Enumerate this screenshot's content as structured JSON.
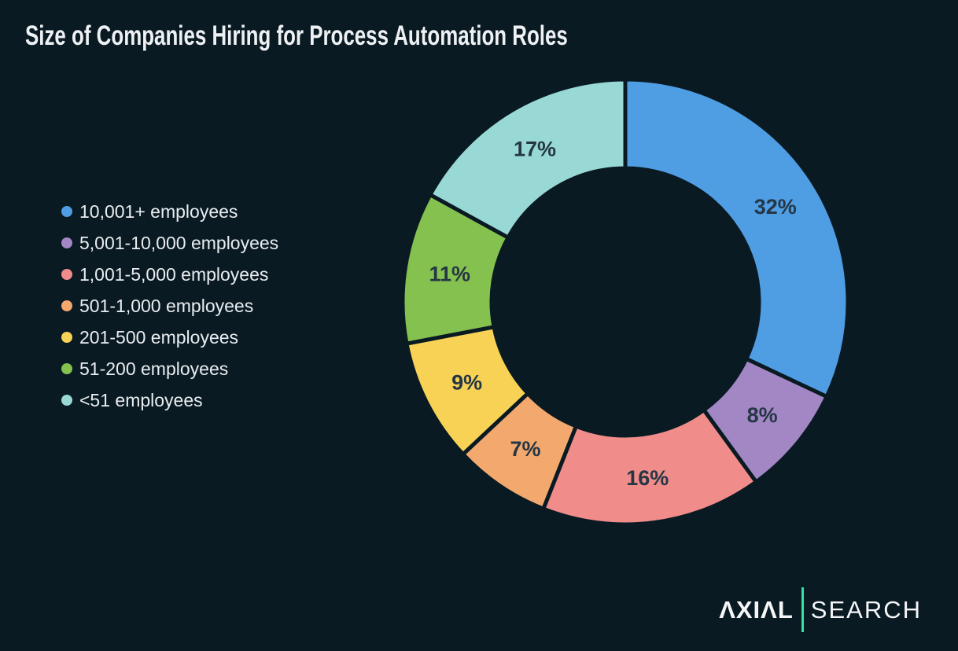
{
  "title": "Size of Companies Hiring for Process Automation Roles",
  "logo": {
    "primary": "AXIAL",
    "secondary": "SEARCH"
  },
  "colors": {
    "background": "#0a1a23",
    "title_text": "#eef1f3",
    "legend_text": "#e9edef",
    "slice_label_text": "#253645",
    "logo_text": "#f4f6f7",
    "logo_divider_green": "#35e3a2"
  },
  "chart_data": {
    "type": "pie",
    "variant": "donut",
    "title": "Size of Companies Hiring for Process Automation Roles",
    "start_angle_deg": 0,
    "direction": "clockwise",
    "donut_hole_ratio": 0.6,
    "legend_position": "left",
    "categories": [
      "10,001+ employees",
      "5,001-10,000 employees",
      "1,001-5,000 employees",
      "501-1,000 employees",
      "201-500 employees",
      "51-200 employees",
      "<51 employees"
    ],
    "values": [
      32,
      8,
      16,
      7,
      9,
      11,
      17
    ],
    "labels": [
      "32%",
      "8%",
      "16%",
      "7%",
      "9%",
      "11%",
      "17%"
    ],
    "colors": [
      "#4f9de2",
      "#a287c4",
      "#f08c8a",
      "#f3a96e",
      "#f7d254",
      "#85c14f",
      "#99d9d5"
    ]
  }
}
